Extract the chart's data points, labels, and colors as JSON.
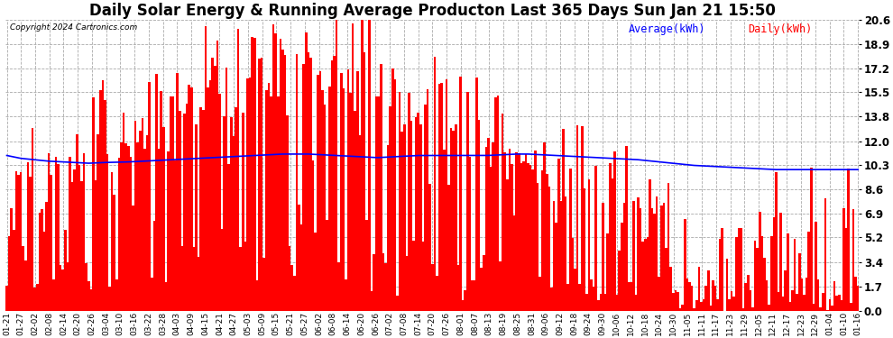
{
  "title": "Daily Solar Energy & Running Average Producton Last 365 Days Sun Jan 21 15:50",
  "ylabel_right_ticks": [
    0.0,
    1.7,
    3.4,
    5.2,
    6.9,
    8.6,
    10.3,
    12.0,
    13.8,
    15.5,
    17.2,
    18.9,
    20.6
  ],
  "ymax": 20.6,
  "ymin": 0.0,
  "bar_color": "#ff0000",
  "avg_line_color": "#0000ff",
  "background_color": "#ffffff",
  "grid_color": "#aaaaaa",
  "title_fontsize": 12,
  "copyright_text": "Copyright 2024 Cartronics.com",
  "legend_avg": "Average(kWh)",
  "legend_daily": "Daily(kWh)",
  "legend_avg_color": "#0000ff",
  "legend_daily_color": "#ff0000",
  "n_bars": 365,
  "x_labels": [
    "01-21",
    "01-27",
    "02-02",
    "02-08",
    "02-14",
    "02-20",
    "02-26",
    "03-04",
    "03-10",
    "03-16",
    "03-22",
    "03-28",
    "04-03",
    "04-09",
    "04-15",
    "04-21",
    "04-27",
    "05-03",
    "05-09",
    "05-15",
    "05-21",
    "05-27",
    "06-02",
    "06-08",
    "06-14",
    "06-20",
    "06-26",
    "07-02",
    "07-08",
    "07-14",
    "07-20",
    "07-26",
    "08-01",
    "08-07",
    "08-13",
    "08-19",
    "08-25",
    "08-31",
    "09-06",
    "09-12",
    "09-18",
    "09-24",
    "09-30",
    "10-06",
    "10-12",
    "10-18",
    "10-24",
    "10-30",
    "11-05",
    "11-11",
    "11-17",
    "11-23",
    "11-29",
    "12-05",
    "12-11",
    "12-17",
    "12-23",
    "12-29",
    "01-04",
    "01-10",
    "01-16"
  ],
  "avg_line_values": [
    11.0,
    10.8,
    10.7,
    10.6,
    10.55,
    10.5,
    10.45,
    10.5,
    10.52,
    10.55,
    10.6,
    10.65,
    10.7,
    10.75,
    10.8,
    10.85,
    10.9,
    10.95,
    11.0,
    11.05,
    11.1,
    11.1,
    11.1,
    11.05,
    11.0,
    10.95,
    10.9,
    10.85,
    10.9,
    10.95,
    11.0,
    11.0,
    11.0,
    11.0,
    11.0,
    11.0,
    11.05,
    11.1,
    11.1,
    11.05,
    11.0,
    10.95,
    10.9,
    10.85,
    10.8,
    10.75,
    10.7,
    10.6,
    10.5,
    10.4,
    10.3,
    10.25,
    10.2,
    10.15,
    10.1,
    10.05,
    10.0,
    10.0,
    10.0,
    10.0,
    10.0,
    10.0,
    10.0
  ]
}
